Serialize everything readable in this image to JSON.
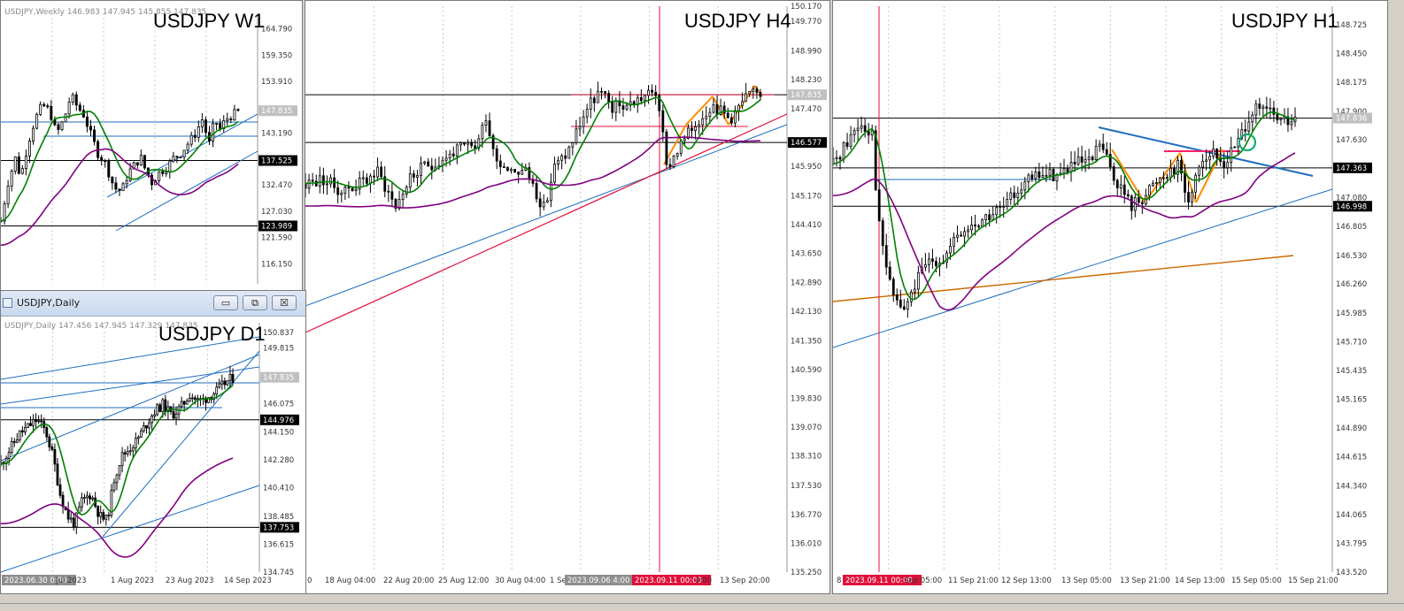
{
  "windows": {
    "w1": {
      "title": "USDJPY W1",
      "info": "USDJPY,Weekly  146.983 147.945 145.855 147.835",
      "price_labels": [
        "164.790",
        "159.350",
        "153.910",
        "147.835",
        "143.190",
        "137.525",
        "132.470",
        "127.030",
        "123.989",
        "121.590",
        "116.150"
      ],
      "time_labels": []
    },
    "d1": {
      "title": "USDJPY D1",
      "caption": "USDJPY,Daily",
      "info": "USDJPY,Daily  147.456 147.945 147.329 147.835",
      "price_labels": [
        "150.837",
        "149.815",
        "147.835",
        "146.075",
        "144.976",
        "144.150",
        "142.280",
        "140.410",
        "138.485",
        "137.753",
        "136.615",
        "134.745"
      ],
      "time_labels": [
        "2023.06.30 0:00",
        "Jul 2023",
        "1 Aug 2023",
        "23 Aug 2023",
        "14 Sep 2023"
      ]
    },
    "h4": {
      "title": "USDJPY H4",
      "price_labels": [
        "150.170",
        "149.770",
        "148.990",
        "148.230",
        "147.835",
        "147.470",
        "146.577",
        "145.950",
        "145.170",
        "144.410",
        "143.650",
        "142.890",
        "142.130",
        "141.350",
        "140.590",
        "139.830",
        "139.070",
        "138.310",
        "137.530",
        "136.770",
        "136.010",
        "135.250"
      ],
      "time_labels": [
        "0",
        "18 Aug 04:00",
        "22 Aug 20:00",
        "25 Aug 12:00",
        "30 Aug 04:00",
        "1 Se",
        "2023.09.06 4:00",
        "2023.09.11 00:00",
        "4:00",
        "13 Sep 20:00"
      ]
    },
    "h1": {
      "title": "USDJPY H1",
      "price_labels": [
        "148.725",
        "148.450",
        "148.175",
        "147.900",
        "147.836",
        "147.630",
        "147.363",
        "147.080",
        "146.998",
        "146.805",
        "146.530",
        "146.260",
        "145.985",
        "145.710",
        "145.435",
        "145.165",
        "144.890",
        "144.615",
        "144.340",
        "144.065",
        "143.795",
        "143.520"
      ],
      "time_labels": [
        "8",
        "2023.09.11 00:00",
        "Sep 05:00",
        "11 Sep 21:00",
        "12 Sep 13:00",
        "13 Sep 05:00",
        "13 Sep 21:00",
        "14 Sep 13:00",
        "15 Sep 05:00",
        "15 Sep 21:00"
      ]
    }
  },
  "buttons": {
    "minimize": "▭",
    "restore": "⧉",
    "close": "☒"
  },
  "colors": {
    "ma_fast": "#008000",
    "ma_slow": "#800080",
    "ma_long": "#cc6600",
    "trend_blue": "#1f6fbf",
    "trend_red": "#e0103a",
    "zigzag": "#ff8c00",
    "pink": "#ff1f6e",
    "cyan": "#00aacc"
  },
  "chart_data": [
    {
      "type": "candlestick",
      "title": "USDJPY W1",
      "symbol": "USDJPY",
      "timeframe": "Weekly",
      "ylim": [
        112,
        168
      ],
      "last": 147.835,
      "hlines": [
        137.525,
        123.989
      ],
      "close_path": [
        [
          0,
          125
        ],
        [
          8,
          133
        ],
        [
          16,
          138
        ],
        [
          22,
          134
        ],
        [
          30,
          141
        ],
        [
          38,
          146
        ],
        [
          46,
          149
        ],
        [
          54,
          148
        ],
        [
          62,
          143
        ],
        [
          70,
          146
        ],
        [
          78,
          151
        ],
        [
          84,
          149
        ],
        [
          92,
          147
        ],
        [
          100,
          143
        ],
        [
          108,
          139
        ],
        [
          116,
          137
        ],
        [
          124,
          133
        ],
        [
          130,
          131
        ],
        [
          136,
          132
        ],
        [
          142,
          135
        ],
        [
          150,
          137
        ],
        [
          156,
          138
        ],
        [
          160,
          136
        ],
        [
          168,
          133
        ],
        [
          176,
          135
        ],
        [
          184,
          136
        ],
        [
          192,
          138
        ],
        [
          200,
          139
        ],
        [
          208,
          141
        ],
        [
          216,
          143
        ],
        [
          224,
          146
        ],
        [
          232,
          141
        ],
        [
          238,
          146
        ],
        [
          244,
          144
        ],
        [
          250,
          146
        ],
        [
          258,
          147
        ],
        [
          266,
          147.8
        ]
      ]
    },
    {
      "type": "candlestick",
      "title": "USDJPY D1",
      "symbol": "USDJPY",
      "timeframe": "Daily",
      "ylim": [
        134.745,
        151.5
      ],
      "last": 147.835,
      "hlines": [
        144.976,
        137.753
      ],
      "close_path": [
        [
          0,
          142
        ],
        [
          10,
          143
        ],
        [
          20,
          144
        ],
        [
          30,
          144.5
        ],
        [
          40,
          145
        ],
        [
          50,
          144.2
        ],
        [
          58,
          142.5
        ],
        [
          66,
          140
        ],
        [
          74,
          138.5
        ],
        [
          82,
          138
        ],
        [
          90,
          139.5
        ],
        [
          100,
          140
        ],
        [
          110,
          138.5
        ],
        [
          118,
          138.2
        ],
        [
          126,
          141
        ],
        [
          134,
          142.5
        ],
        [
          142,
          143
        ],
        [
          150,
          143.5
        ],
        [
          160,
          144.5
        ],
        [
          170,
          145.5
        ],
        [
          180,
          146
        ],
        [
          190,
          145.3
        ],
        [
          200,
          145.8
        ],
        [
          210,
          146.7
        ],
        [
          220,
          146.2
        ],
        [
          230,
          146.5
        ],
        [
          240,
          146.9
        ],
        [
          250,
          147.5
        ],
        [
          258,
          147.8
        ]
      ]
    },
    {
      "type": "candlestick",
      "title": "USDJPY H4",
      "symbol": "USDJPY",
      "timeframe": "H4",
      "ylim": [
        135.25,
        150.17
      ],
      "last": 147.835,
      "hlines": [
        146.577,
        147.835
      ],
      "close_path": [
        [
          0,
          145.5
        ],
        [
          20,
          145.6
        ],
        [
          40,
          145.3
        ],
        [
          60,
          145.5
        ],
        [
          80,
          145.8
        ],
        [
          100,
          144.9
        ],
        [
          115,
          145.6
        ],
        [
          130,
          145.9
        ],
        [
          150,
          146.1
        ],
        [
          170,
          146.4
        ],
        [
          190,
          146.5
        ],
        [
          200,
          147.3
        ],
        [
          210,
          146.2
        ],
        [
          225,
          145.9
        ],
        [
          245,
          145.8
        ],
        [
          265,
          144.8
        ],
        [
          275,
          145.9
        ],
        [
          290,
          146.3
        ],
        [
          310,
          147.4
        ],
        [
          325,
          147.9
        ],
        [
          340,
          147.5
        ],
        [
          360,
          147.6
        ],
        [
          375,
          147.8
        ],
        [
          390,
          147.9
        ],
        [
          400,
          145.9
        ],
        [
          415,
          146.5
        ],
        [
          430,
          147.0
        ],
        [
          450,
          147.6
        ],
        [
          470,
          147.2
        ],
        [
          490,
          147.8
        ],
        [
          505,
          147.9
        ]
      ]
    },
    {
      "type": "candlestick",
      "title": "USDJPY H1",
      "symbol": "USDJPY",
      "timeframe": "H1",
      "ylim": [
        143.52,
        148.9
      ],
      "last": 147.836,
      "hlines": [
        147.836,
        147.363,
        146.998
      ],
      "close_path": [
        [
          0,
          147.4
        ],
        [
          15,
          147.6
        ],
        [
          30,
          147.8
        ],
        [
          45,
          147.7
        ],
        [
          50,
          146.9
        ],
        [
          65,
          146.2
        ],
        [
          80,
          146.0
        ],
        [
          95,
          146.3
        ],
        [
          110,
          146.5
        ],
        [
          125,
          146.5
        ],
        [
          140,
          146.7
        ],
        [
          155,
          146.8
        ],
        [
          175,
          146.9
        ],
        [
          195,
          147.0
        ],
        [
          210,
          147.2
        ],
        [
          235,
          147.3
        ],
        [
          255,
          147.3
        ],
        [
          270,
          147.4
        ],
        [
          290,
          147.4
        ],
        [
          300,
          147.6
        ],
        [
          315,
          147.3
        ],
        [
          335,
          147.0
        ],
        [
          350,
          147.1
        ],
        [
          370,
          147.3
        ],
        [
          390,
          147.4
        ],
        [
          400,
          147.0
        ],
        [
          410,
          147.4
        ],
        [
          425,
          147.5
        ],
        [
          440,
          147.4
        ],
        [
          455,
          147.6
        ],
        [
          470,
          147.9
        ],
        [
          490,
          147.9
        ],
        [
          505,
          147.8
        ],
        [
          520,
          147.8
        ]
      ]
    }
  ]
}
